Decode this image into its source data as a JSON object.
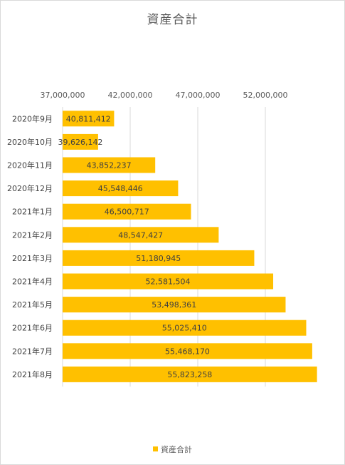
{
  "chart_data": {
    "type": "bar",
    "orientation": "horizontal",
    "title": "資産合計",
    "categories": [
      "2020年9月",
      "2020年10月",
      "2020年11月",
      "2020年12月",
      "2021年1月",
      "2021年2月",
      "2021年3月",
      "2021年4月",
      "2021年5月",
      "2021年6月",
      "2021年7月",
      "2021年8月"
    ],
    "series": [
      {
        "name": "資産合計",
        "values": [
          40811412,
          39626142,
          43852237,
          45548446,
          46500717,
          48547427,
          51180945,
          52581504,
          53498361,
          55025410,
          55468170,
          55823258
        ],
        "labels": [
          "40,811,412",
          "39,626,142",
          "43,852,237",
          "45,548,446",
          "46,500,717",
          "48,547,427",
          "51,180,945",
          "52,581,504",
          "53,498,361",
          "55,025,410",
          "55,468,170",
          "55,823,258"
        ]
      }
    ],
    "xlim": [
      37000000,
      57000000
    ],
    "xticks": [
      37000000,
      42000000,
      47000000,
      52000000
    ],
    "xtick_labels": [
      "37,000,000",
      "42,000,000",
      "47,000,000",
      "52,000,000"
    ],
    "x_axis_position": "top",
    "grid": true,
    "legend": "bottom",
    "bar_color": "#FFC000"
  }
}
